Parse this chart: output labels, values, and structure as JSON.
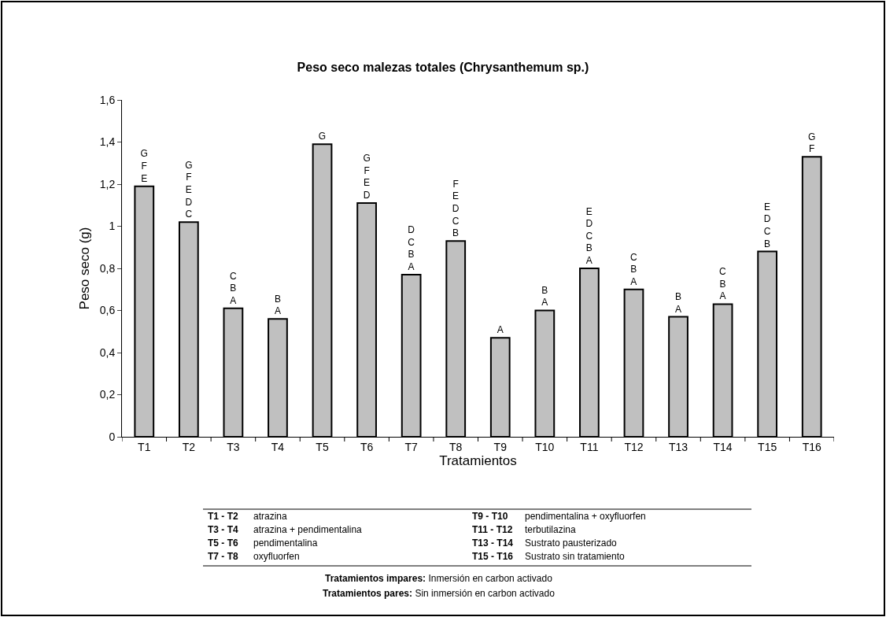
{
  "chart_data": {
    "type": "bar",
    "title": "Peso seco malezas totales (Chrysanthemum sp.)",
    "xlabel": "Tratamientos",
    "ylabel": "Peso seco (g)",
    "categories": [
      "T1",
      "T2",
      "T3",
      "T4",
      "T5",
      "T6",
      "T7",
      "T8",
      "T9",
      "T10",
      "T11",
      "T12",
      "T13",
      "T14",
      "T15",
      "T16"
    ],
    "values": [
      1.19,
      1.02,
      0.61,
      0.56,
      1.39,
      1.11,
      0.77,
      0.93,
      0.47,
      0.6,
      0.8,
      0.7,
      0.57,
      0.63,
      0.88,
      1.33
    ],
    "value_labels": [
      "G\nF\nE",
      "G\nF\nE\nD\nC",
      "C\nB\nA",
      "B\nA",
      "G",
      "G\nF\nE\nD",
      "D\nC\nB\nA",
      "F\nE\nD\nC\nB",
      "A",
      "B\nA",
      "E\nD\nC\nB\nA",
      "C\nB\nA",
      "B\nA",
      "C\nB\nA",
      "E\nD\nC\nB",
      "G\nF"
    ],
    "color": "#c0c0c0",
    "ylim": [
      0,
      1.6
    ],
    "yticks": [
      0,
      {
        "value": 0.2,
        "label": "0,2"
      },
      {
        "value": 0.4,
        "label": "0,4"
      },
      {
        "value": 0.6,
        "label": "0,6"
      },
      {
        "value": 0.8,
        "label": "0,8"
      },
      1,
      {
        "value": 1.2,
        "label": "1,2"
      },
      {
        "value": 1.4,
        "label": "1,4"
      },
      {
        "value": 1.6,
        "label": "1,6"
      }
    ],
    "grid": false,
    "legend": false,
    "annotations": [
      "T1 - T2  atrazina",
      "T3 - T4  atrazina + pendimentalina",
      "T5 - T6  pendimentalina",
      "T7 - T8  oxyfluorfen",
      "T9 - T10  pendimentalina + oxyfluorfen",
      "T11 - T12  terbutilazina",
      "T13 - T14  Sustrato pausterizado",
      "T15 - T16  Sustrato sin tratamiento",
      "Tratamientos impares: Inmersión en carbon activado",
      "Tratamientos pares: Sin inmersión en carbon activado"
    ]
  }
}
